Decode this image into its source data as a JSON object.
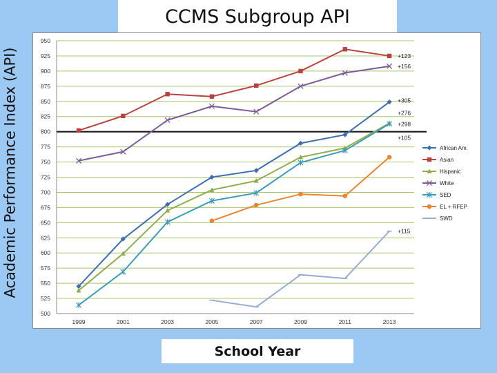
{
  "chart_data": {
    "type": "line",
    "title": "CCMS Subgroup API",
    "xlabel": "School Year",
    "ylabel": "Academic Performance Index (API)",
    "x": [
      "1999",
      "2001",
      "2003",
      "2005",
      "2007",
      "2009",
      "2011",
      "2013"
    ],
    "ylim": [
      500,
      950
    ],
    "yticks": [
      500,
      525,
      550,
      575,
      600,
      625,
      650,
      675,
      700,
      725,
      750,
      775,
      800,
      825,
      850,
      875,
      900,
      925,
      950
    ],
    "grid": true,
    "legend_position": "right",
    "reference_line": 800,
    "series": [
      {
        "name": "African Am.",
        "color": "#3d6eb0",
        "marker": "diamond",
        "values": [
          545,
          623,
          680,
          725,
          736,
          781,
          795,
          849
        ],
        "change": "+305"
      },
      {
        "name": "Asian",
        "color": "#b7423f",
        "marker": "square",
        "values": [
          802,
          826,
          862,
          858,
          876,
          900,
          936,
          925
        ],
        "change": "+123"
      },
      {
        "name": "Hispanic",
        "color": "#8fae4b",
        "marker": "triangle",
        "values": [
          538,
          599,
          670,
          704,
          719,
          758,
          773,
          814
        ],
        "change": "+276"
      },
      {
        "name": "White",
        "color": "#7a5b98",
        "marker": "x",
        "values": [
          752,
          767,
          819,
          842,
          833,
          875,
          897,
          908
        ],
        "change": "+156"
      },
      {
        "name": "SED",
        "color": "#3e9bb8",
        "marker": "star",
        "values": [
          514,
          569,
          651,
          686,
          699,
          749,
          769,
          813
        ],
        "change": "+298"
      },
      {
        "name": "EL + RFEP",
        "color": "#e8862f",
        "marker": "circle",
        "values": [
          null,
          null,
          null,
          653,
          679,
          697,
          694,
          758
        ],
        "change": "+105"
      },
      {
        "name": "SWD",
        "color": "#96acd2",
        "marker": "dash",
        "values": [
          null,
          null,
          null,
          522,
          511,
          564,
          558,
          636
        ],
        "change": "+115"
      }
    ]
  }
}
